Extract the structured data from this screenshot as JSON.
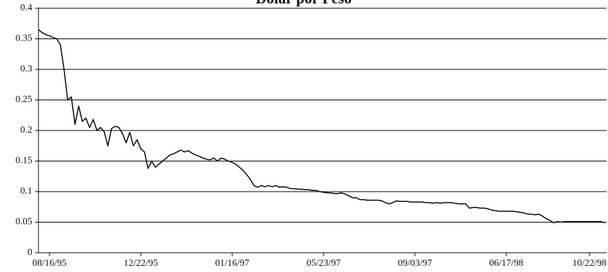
{
  "chart_data": {
    "type": "line",
    "title": "Dolar por Peso",
    "xlabel": "",
    "ylabel": "",
    "ylim": [
      0,
      0.4
    ],
    "yticks": [
      "0",
      "0.05",
      "0.1",
      "0.15",
      "0.2",
      "0.25",
      "0.3",
      "0.35",
      "0.4"
    ],
    "xticks": [
      "08/16/95",
      "12/22/95",
      "01/16/97",
      "05/23/97",
      "09/03/97",
      "06/17/98",
      "10/22/98"
    ],
    "grid": true,
    "legend": "none",
    "colors": {
      "line": "#000000",
      "grid": "#000000",
      "background": "#ffffff"
    },
    "series": [
      {
        "values": [
          0.365,
          0.36,
          0.357,
          0.355,
          0.352,
          0.35,
          0.34,
          0.3,
          0.25,
          0.255,
          0.21,
          0.24,
          0.215,
          0.22,
          0.205,
          0.218,
          0.2,
          0.205,
          0.198,
          0.175,
          0.203,
          0.207,
          0.205,
          0.195,
          0.18,
          0.197,
          0.175,
          0.185,
          0.17,
          0.165,
          0.138,
          0.15,
          0.14,
          0.145,
          0.15,
          0.155,
          0.16,
          0.162,
          0.165,
          0.168,
          0.165,
          0.167,
          0.163,
          0.16,
          0.158,
          0.155,
          0.153,
          0.152,
          0.155,
          0.15,
          0.155,
          0.153,
          0.15,
          0.148,
          0.145,
          0.14,
          0.135,
          0.128,
          0.12,
          0.11,
          0.107,
          0.11,
          0.108,
          0.11,
          0.108,
          0.11,
          0.107,
          0.108,
          0.107,
          0.105,
          0.105,
          0.104,
          0.104,
          0.103,
          0.103,
          0.102,
          0.102,
          0.1,
          0.099,
          0.098,
          0.098,
          0.097,
          0.097,
          0.098,
          0.096,
          0.093,
          0.09,
          0.09,
          0.087,
          0.087,
          0.086,
          0.086,
          0.086,
          0.086,
          0.085,
          0.082,
          0.08,
          0.082,
          0.085,
          0.084,
          0.084,
          0.084,
          0.083,
          0.083,
          0.083,
          0.083,
          0.082,
          0.082,
          0.081,
          0.082,
          0.081,
          0.082,
          0.082,
          0.082,
          0.081,
          0.08,
          0.08,
          0.08,
          0.073,
          0.074,
          0.074,
          0.073,
          0.073,
          0.072,
          0.07,
          0.069,
          0.068,
          0.068,
          0.068,
          0.068,
          0.068,
          0.067,
          0.066,
          0.065,
          0.063,
          0.063,
          0.062,
          0.063,
          0.06,
          0.056,
          0.053,
          0.049,
          0.051,
          0.05,
          0.051,
          0.051,
          0.051,
          0.051,
          0.051,
          0.051,
          0.051,
          0.051,
          0.051,
          0.051,
          0.051,
          0.049
        ]
      }
    ]
  }
}
